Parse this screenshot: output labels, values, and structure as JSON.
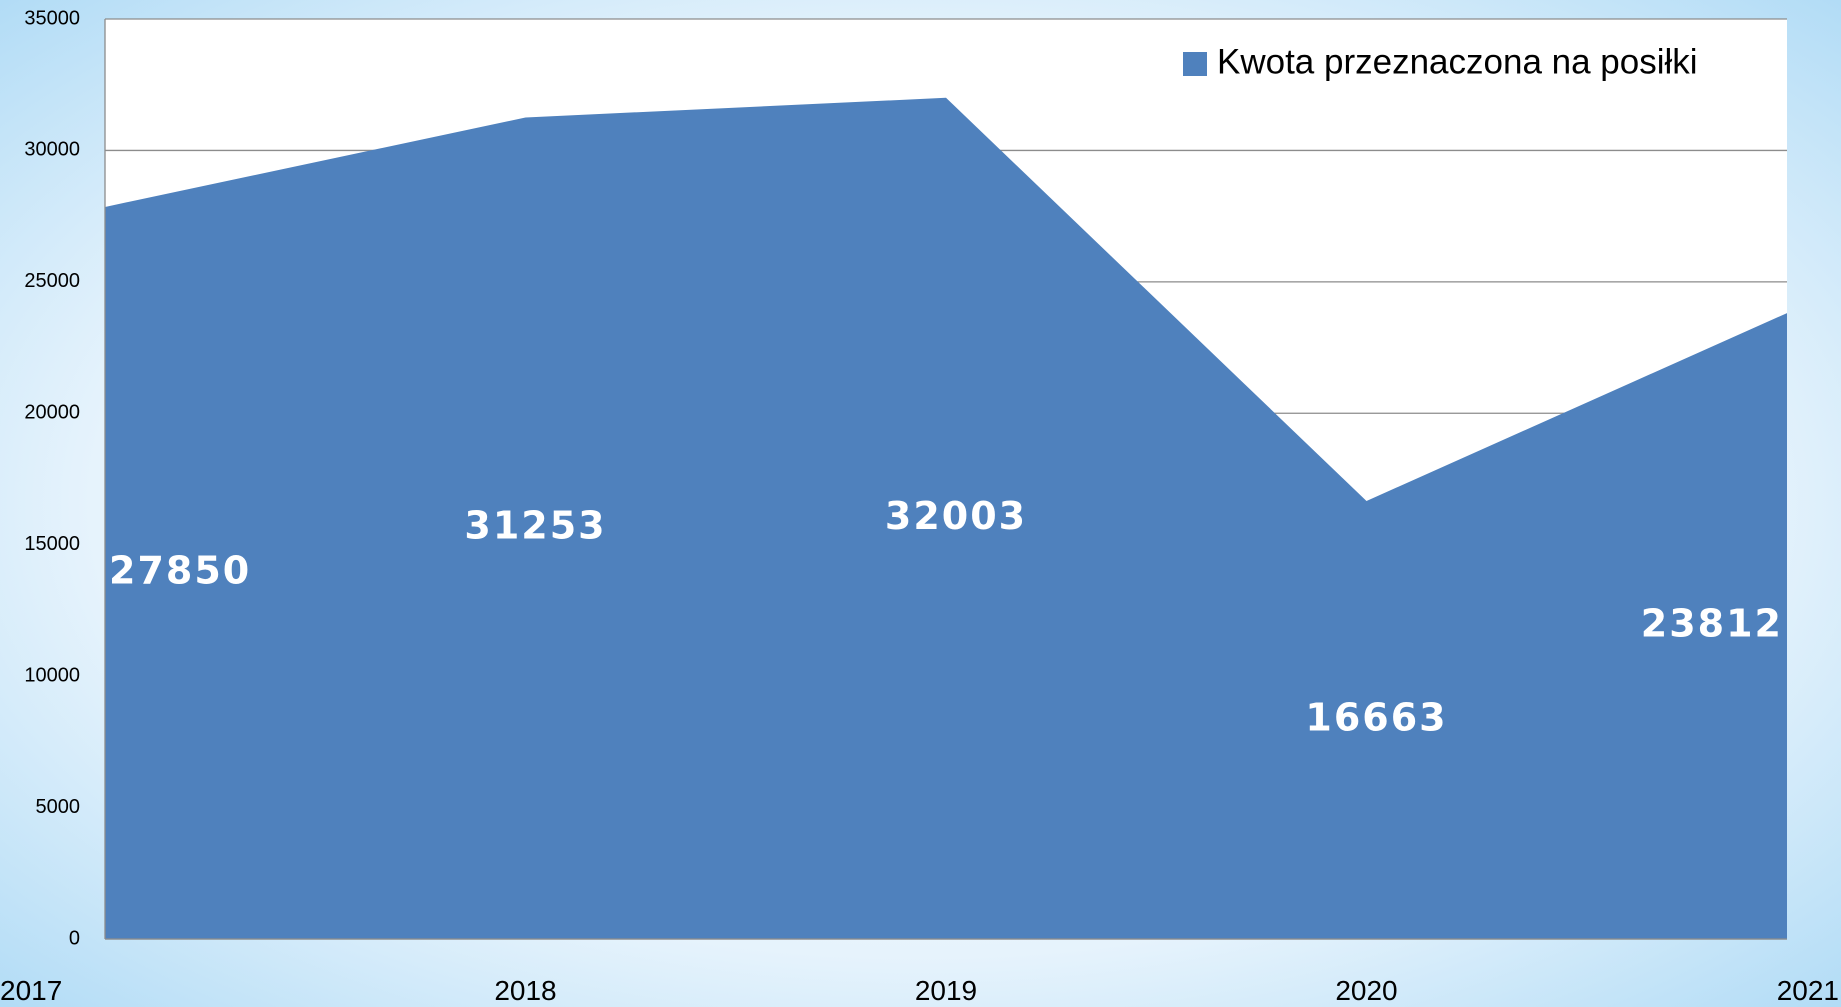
{
  "chart_data": {
    "type": "area",
    "categories": [
      "2017",
      "2018",
      "2019",
      "2020",
      "2021"
    ],
    "series": [
      {
        "name": "Kwota przeznaczona na posiłki",
        "color": "#4f81bd",
        "values": [
          27850,
          31253,
          32003,
          16663,
          23812
        ]
      }
    ],
    "ylim": [
      0,
      35000
    ],
    "yticks": [
      0,
      5000,
      10000,
      15000,
      20000,
      25000,
      30000,
      35000
    ],
    "grid": true,
    "legend": "top-right"
  }
}
